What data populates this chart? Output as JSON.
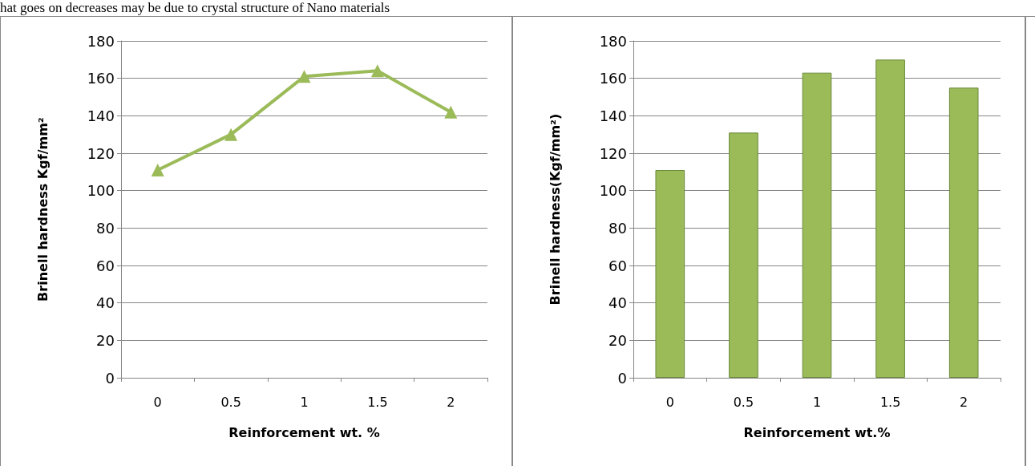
{
  "chart_data": [
    {
      "type": "line",
      "annotations": [
        "hat goes on decreases may be due to crystal structure of Nano materials"
      ],
      "xlabel": "Reinforcement wt. %",
      "ylabel": "Brinell hardness Kgf/mm²",
      "categories": [
        "0",
        "0.5",
        "1",
        "1.5",
        "2"
      ],
      "series": [
        {
          "color": "#9bbb59",
          "values": [
            111,
            130,
            161,
            164,
            142
          ]
        }
      ],
      "ylim": [
        0,
        180
      ],
      "yticks": [
        0,
        20,
        40,
        60,
        80,
        100,
        120,
        140,
        160,
        180
      ],
      "grid": "y",
      "marker": "triangle",
      "line_style": "solid"
    },
    {
      "type": "bar",
      "xlabel": "Reinforcement wt.%",
      "ylabel": "Brinell hardness(Kgf/mm²)",
      "categories": [
        "0",
        "0.5",
        "1",
        "1.5",
        "2"
      ],
      "series": [
        {
          "color": "#9bbb59",
          "values": [
            111,
            131,
            163,
            170,
            155
          ]
        }
      ],
      "ylim": [
        0,
        180
      ],
      "yticks": [
        0,
        20,
        40,
        60,
        80,
        100,
        120,
        140,
        160,
        180
      ],
      "grid": "y"
    }
  ]
}
